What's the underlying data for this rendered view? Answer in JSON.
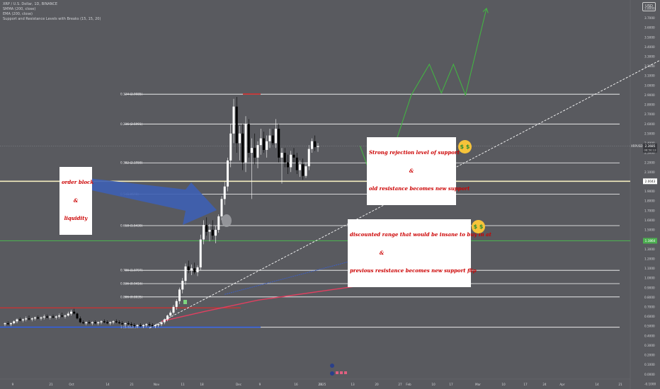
{
  "header": {
    "symbol_line": "XRP / U.S. Dollar, 1D, BINANCE",
    "indicators": [
      "SMMA (200, close)",
      "EMA (200, close)",
      "Support and Resistance Levels with Breaks (15, 15, 20)"
    ]
  },
  "currency_button": "USD",
  "colors": {
    "background": "#595a5f",
    "fib_line": "#ffffff",
    "candle_up": "#ffffff",
    "candle_down": "#000000",
    "support_green": "#4caf50",
    "current_price_yellow": "#f5eec0",
    "resistance_red": "#d32f2f",
    "support_blue": "#2962ff",
    "smma_blue": "#3a60d0",
    "ema_red": "#e04060",
    "projection_green": "#43b343",
    "arrow_blue": "#3d5fb4"
  },
  "chart_data": {
    "type": "candlestick",
    "symbol": "XRP / U.S. Dollar",
    "timeframe": "1D",
    "exchange": "BINANCE",
    "y_axis": {
      "min": -0.05,
      "max": 3.85,
      "ticks": [
        "3.8000",
        "3.7000",
        "3.6000",
        "3.5000",
        "3.4000",
        "3.3000",
        "3.2000",
        "3.1000",
        "3.0000",
        "2.9000",
        "2.8000",
        "2.7000",
        "2.6000",
        "2.5000",
        "2.4000",
        "2.3000",
        "2.2000",
        "2.1000",
        "2.0000",
        "1.9000",
        "1.8000",
        "1.7000",
        "1.6000",
        "1.5000",
        "1.4000",
        "1.3000",
        "1.2000",
        "1.1000",
        "1.0000",
        "0.9000",
        "0.8000",
        "0.7000",
        "0.6000",
        "0.5000",
        "0.4000",
        "0.3000",
        "0.2000",
        "0.1000",
        "0.0000",
        "-0.1000"
      ]
    },
    "x_axis_labels": [
      "9",
      "21",
      "Oct",
      "14",
      "21",
      "Nov",
      "11",
      "18",
      "Dec",
      "9",
      "16",
      "23",
      "2025",
      "13",
      "20",
      "27",
      "Feb",
      "10",
      "17",
      "Mar",
      "10",
      "17",
      "24",
      "Apr",
      "14",
      "21"
    ],
    "fib_levels": [
      {
        "ratio": "0.124",
        "label": "0.124 (2.9085)",
        "price": 2.9085
      },
      {
        "ratio": "0.236",
        "label": "0.236 (2.5991)",
        "price": 2.5991
      },
      {
        "ratio": "0.382",
        "label": "0.382 (2.1958)",
        "price": 2.1958
      },
      {
        "ratio": "0.5",
        "label": "0.5 (1.8698)",
        "price": 1.8698
      },
      {
        "ratio": "0.618",
        "label": "0.618 (1.5438)",
        "price": 1.5438
      },
      {
        "ratio": "0.786",
        "label": "0.786 (1.0797)",
        "price": 1.0797
      },
      {
        "ratio": "0.836",
        "label": "0.836 (0.9416)",
        "price": 0.9416
      },
      {
        "ratio": "0.886",
        "label": "0.886 (0.8035)",
        "price": 0.8035
      },
      {
        "ratio": "1",
        "label": "1 (0.4885)",
        "price": 0.4885
      }
    ],
    "horizontal_lines": [
      {
        "kind": "green-support",
        "price": 1.3864,
        "price_tag": "1.3864"
      },
      {
        "kind": "current-level",
        "price": 2.0043,
        "price_tag": "2.0043"
      },
      {
        "kind": "resistance-red",
        "price": 0.69
      },
      {
        "kind": "support-blue",
        "price": 0.49
      },
      {
        "kind": "top-red",
        "price": 2.91
      }
    ],
    "current_price": {
      "symbol": "XRPUSD",
      "price": 2.3685,
      "price_text": "2.3685",
      "countdown": "06:50:13"
    },
    "candles": [
      [
        0.52,
        0.54,
        0.5,
        0.53
      ],
      [
        0.53,
        0.55,
        0.51,
        0.52
      ],
      [
        0.52,
        0.54,
        0.5,
        0.53
      ],
      [
        0.53,
        0.56,
        0.52,
        0.55
      ],
      [
        0.55,
        0.58,
        0.53,
        0.57
      ],
      [
        0.57,
        0.59,
        0.55,
        0.56
      ],
      [
        0.56,
        0.58,
        0.54,
        0.57
      ],
      [
        0.57,
        0.6,
        0.55,
        0.58
      ],
      [
        0.58,
        0.61,
        0.56,
        0.57
      ],
      [
        0.57,
        0.59,
        0.55,
        0.58
      ],
      [
        0.58,
        0.6,
        0.56,
        0.59
      ],
      [
        0.59,
        0.61,
        0.57,
        0.58
      ],
      [
        0.58,
        0.6,
        0.56,
        0.59
      ],
      [
        0.59,
        0.62,
        0.57,
        0.6
      ],
      [
        0.6,
        0.62,
        0.58,
        0.59
      ],
      [
        0.59,
        0.61,
        0.57,
        0.6
      ],
      [
        0.6,
        0.62,
        0.58,
        0.59
      ],
      [
        0.59,
        0.61,
        0.57,
        0.6
      ],
      [
        0.6,
        0.63,
        0.58,
        0.61
      ],
      [
        0.61,
        0.64,
        0.59,
        0.6
      ],
      [
        0.6,
        0.62,
        0.58,
        0.61
      ],
      [
        0.61,
        0.65,
        0.6,
        0.63
      ],
      [
        0.63,
        0.67,
        0.61,
        0.65
      ],
      [
        0.65,
        0.68,
        0.62,
        0.63
      ],
      [
        0.63,
        0.64,
        0.57,
        0.58
      ],
      [
        0.58,
        0.6,
        0.53,
        0.54
      ],
      [
        0.54,
        0.56,
        0.52,
        0.53
      ],
      [
        0.53,
        0.55,
        0.51,
        0.54
      ],
      [
        0.54,
        0.56,
        0.52,
        0.53
      ],
      [
        0.53,
        0.55,
        0.51,
        0.54
      ],
      [
        0.54,
        0.56,
        0.52,
        0.53
      ],
      [
        0.53,
        0.55,
        0.51,
        0.54
      ],
      [
        0.54,
        0.56,
        0.52,
        0.55
      ],
      [
        0.55,
        0.57,
        0.53,
        0.54
      ],
      [
        0.54,
        0.56,
        0.52,
        0.53
      ],
      [
        0.53,
        0.55,
        0.51,
        0.54
      ],
      [
        0.54,
        0.56,
        0.52,
        0.55
      ],
      [
        0.55,
        0.57,
        0.53,
        0.54
      ],
      [
        0.54,
        0.56,
        0.52,
        0.53
      ],
      [
        0.53,
        0.55,
        0.51,
        0.52
      ],
      [
        0.52,
        0.54,
        0.5,
        0.53
      ],
      [
        0.53,
        0.55,
        0.51,
        0.52
      ],
      [
        0.52,
        0.54,
        0.49,
        0.51
      ],
      [
        0.51,
        0.53,
        0.48,
        0.5
      ],
      [
        0.5,
        0.52,
        0.48,
        0.51
      ],
      [
        0.51,
        0.53,
        0.49,
        0.5
      ],
      [
        0.5,
        0.52,
        0.48,
        0.51
      ],
      [
        0.51,
        0.53,
        0.49,
        0.52
      ],
      [
        0.52,
        0.54,
        0.5,
        0.51
      ],
      [
        0.51,
        0.53,
        0.49,
        0.5
      ],
      [
        0.5,
        0.52,
        0.48,
        0.51
      ],
      [
        0.51,
        0.53,
        0.49,
        0.52
      ],
      [
        0.52,
        0.55,
        0.5,
        0.54
      ],
      [
        0.54,
        0.58,
        0.52,
        0.57
      ],
      [
        0.57,
        0.62,
        0.55,
        0.61
      ],
      [
        0.61,
        0.66,
        0.59,
        0.64
      ],
      [
        0.64,
        0.72,
        0.62,
        0.7
      ],
      [
        0.7,
        0.78,
        0.67,
        0.76
      ],
      [
        0.76,
        0.9,
        0.73,
        0.88
      ],
      [
        0.88,
        1.0,
        0.84,
        0.97
      ],
      [
        0.97,
        1.15,
        0.93,
        1.12
      ],
      [
        1.12,
        1.18,
        1.05,
        1.08
      ],
      [
        1.08,
        1.14,
        1.03,
        1.1
      ],
      [
        1.1,
        1.16,
        1.04,
        1.06
      ],
      [
        1.06,
        1.13,
        1.02,
        1.11
      ],
      [
        1.11,
        1.45,
        1.08,
        1.4
      ],
      [
        1.4,
        1.6,
        1.35,
        1.55
      ],
      [
        1.55,
        1.63,
        1.44,
        1.48
      ],
      [
        1.48,
        1.56,
        1.38,
        1.5
      ],
      [
        1.5,
        1.6,
        1.4,
        1.44
      ],
      [
        1.44,
        1.54,
        1.36,
        1.5
      ],
      [
        1.5,
        1.66,
        1.47,
        1.64
      ],
      [
        1.64,
        1.85,
        1.6,
        1.82
      ],
      [
        1.82,
        2.0,
        1.76,
        1.95
      ],
      [
        1.95,
        2.25,
        1.9,
        2.22
      ],
      [
        2.22,
        2.6,
        2.15,
        2.5
      ],
      [
        2.5,
        2.86,
        2.4,
        2.78
      ],
      [
        2.78,
        2.88,
        2.3,
        2.4
      ],
      [
        2.4,
        2.58,
        2.22,
        2.5
      ],
      [
        2.5,
        2.6,
        2.12,
        2.2
      ],
      [
        2.2,
        2.68,
        2.1,
        2.6
      ],
      [
        2.6,
        2.65,
        2.25,
        2.3
      ],
      [
        2.3,
        2.45,
        1.82,
        2.35
      ],
      [
        2.35,
        2.5,
        2.18,
        2.25
      ],
      [
        2.25,
        2.42,
        2.14,
        2.38
      ],
      [
        2.38,
        2.55,
        2.28,
        2.45
      ],
      [
        2.45,
        2.52,
        2.3,
        2.33
      ],
      [
        2.33,
        2.48,
        2.25,
        2.42
      ],
      [
        2.42,
        2.55,
        2.35,
        2.48
      ],
      [
        2.48,
        2.55,
        2.38,
        2.4
      ],
      [
        2.4,
        2.65,
        2.35,
        2.55
      ],
      [
        2.55,
        2.6,
        2.2,
        2.25
      ],
      [
        2.25,
        2.35,
        1.98,
        2.3
      ],
      [
        2.3,
        2.35,
        2.15,
        2.2
      ],
      [
        2.2,
        2.28,
        2.08,
        2.15
      ],
      [
        2.15,
        2.32,
        2.1,
        2.28
      ],
      [
        2.28,
        2.35,
        2.2,
        2.25
      ],
      [
        2.25,
        2.3,
        2.08,
        2.12
      ],
      [
        2.12,
        2.22,
        2.05,
        2.18
      ],
      [
        2.18,
        2.24,
        2.02,
        2.06
      ],
      [
        2.06,
        2.2,
        2.04,
        2.16
      ],
      [
        2.16,
        2.38,
        2.12,
        2.34
      ],
      [
        2.34,
        2.45,
        2.3,
        2.42
      ],
      [
        2.42,
        2.48,
        2.32,
        2.36
      ],
      [
        2.36,
        2.4,
        2.31,
        2.37
      ]
    ],
    "moving_averages": [
      {
        "name": "SMMA (200, close)",
        "color": "blue",
        "points": [
          [
            73,
            0.83
          ],
          [
            118,
            1.2
          ]
        ]
      },
      {
        "name": "EMA (200, close)",
        "color": "red",
        "points": [
          [
            52,
            0.55
          ],
          [
            66,
            0.65
          ],
          [
            84,
            0.77
          ],
          [
            118,
            0.92
          ]
        ]
      }
    ],
    "projection_path": [
      [
        118,
        2.37
      ],
      [
        124,
        1.86
      ],
      [
        135,
        2.9
      ],
      [
        141,
        3.22
      ],
      [
        145,
        2.92
      ],
      [
        149,
        3.22
      ],
      [
        153,
        2.9
      ],
      [
        160,
        3.8
      ]
    ],
    "trendline": {
      "points": [
        [
          48,
          0.48
        ],
        [
          220,
          3.3
        ]
      ],
      "style": "dashed"
    },
    "annotations": [
      {
        "id": "order-block",
        "text_lines": [
          "order block",
          "&",
          "liquidity"
        ]
      },
      {
        "id": "rejection",
        "text_lines": [
          "Strong rejection level of support",
          "&",
          "old resistance becomes new support"
        ]
      },
      {
        "id": "discounted",
        "text_lines": [
          "discounted range that would be insane to buy in at",
          "&",
          "previous resistance becomes new support flip"
        ]
      }
    ],
    "emoji_text": "$ $"
  }
}
